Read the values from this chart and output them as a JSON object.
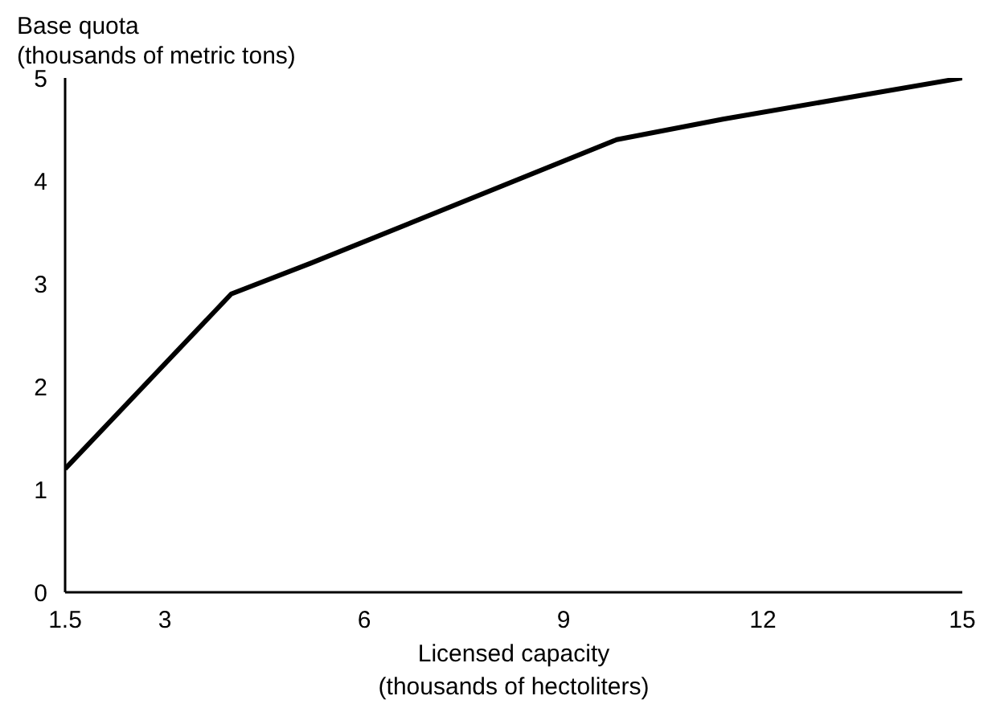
{
  "chart_data": {
    "type": "line",
    "ylabel": "Base quota\n(thousands of metric tons)",
    "xlabel": "Licensed capacity\n(thousands of hectoliters)",
    "x": [
      1.5,
      4,
      5.2,
      9.8,
      11.4,
      15
    ],
    "series": [
      {
        "color": "#000000",
        "values": [
          1.2,
          2.9,
          3.2,
          4.4,
          4.6,
          5.0
        ]
      }
    ],
    "xlim": [
      1.5,
      15
    ],
    "xticks": [
      1.5,
      3,
      6,
      9,
      12,
      15
    ],
    "ylim": [
      0,
      5
    ],
    "yticks": [
      0,
      1,
      2,
      3,
      4,
      5
    ],
    "grid": false,
    "marker": "none",
    "line_style": "solid"
  }
}
